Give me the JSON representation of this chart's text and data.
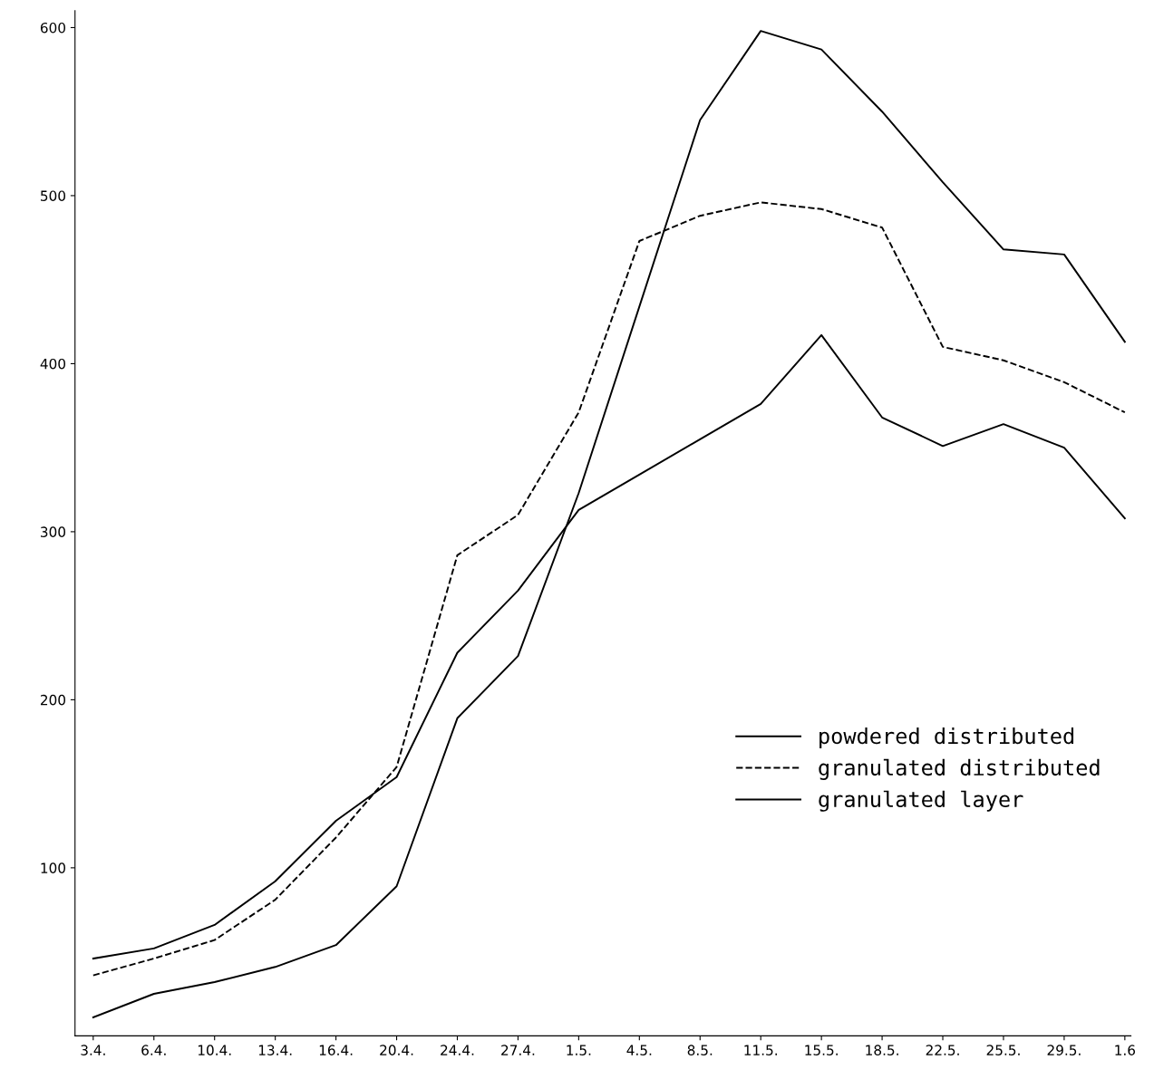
{
  "chart_data": {
    "type": "line",
    "categories": [
      "3.4.",
      "6.4.",
      "10.4.",
      "13.4.",
      "16.4.",
      "20.4.",
      "24.4.",
      "27.4.",
      "1.5.",
      "4.5.",
      "8.5.",
      "11.5.",
      "15.5.",
      "18.5.",
      "22.5.",
      "25.5.",
      "29.5.",
      "1.6"
    ],
    "series": [
      {
        "name": "powdered distributed",
        "color": "#000000",
        "line_style": "solid",
        "values": [
          46,
          52,
          66,
          92,
          128,
          154,
          228,
          265,
          313,
          334,
          355,
          376,
          417,
          368,
          351,
          364,
          350,
          308
        ]
      },
      {
        "name": "granulated distributed",
        "color": "#000000",
        "line_style": "dashed",
        "values": [
          36,
          46,
          57,
          81,
          118,
          160,
          286,
          310,
          371,
          473,
          488,
          496,
          492,
          481,
          410,
          402,
          389,
          371
        ]
      },
      {
        "name": "granulated layer",
        "color": "#000000",
        "line_style": "solid",
        "values": [
          11,
          25,
          32,
          41,
          54,
          89,
          189,
          226,
          323,
          434,
          545,
          598,
          587,
          550,
          508,
          468,
          465,
          413
        ]
      }
    ],
    "ylim": [
      0,
      610
    ],
    "yticks": [
      100,
      200,
      300,
      400,
      500,
      600
    ],
    "grid": false,
    "legend": "bottom right",
    "marker": "none"
  }
}
